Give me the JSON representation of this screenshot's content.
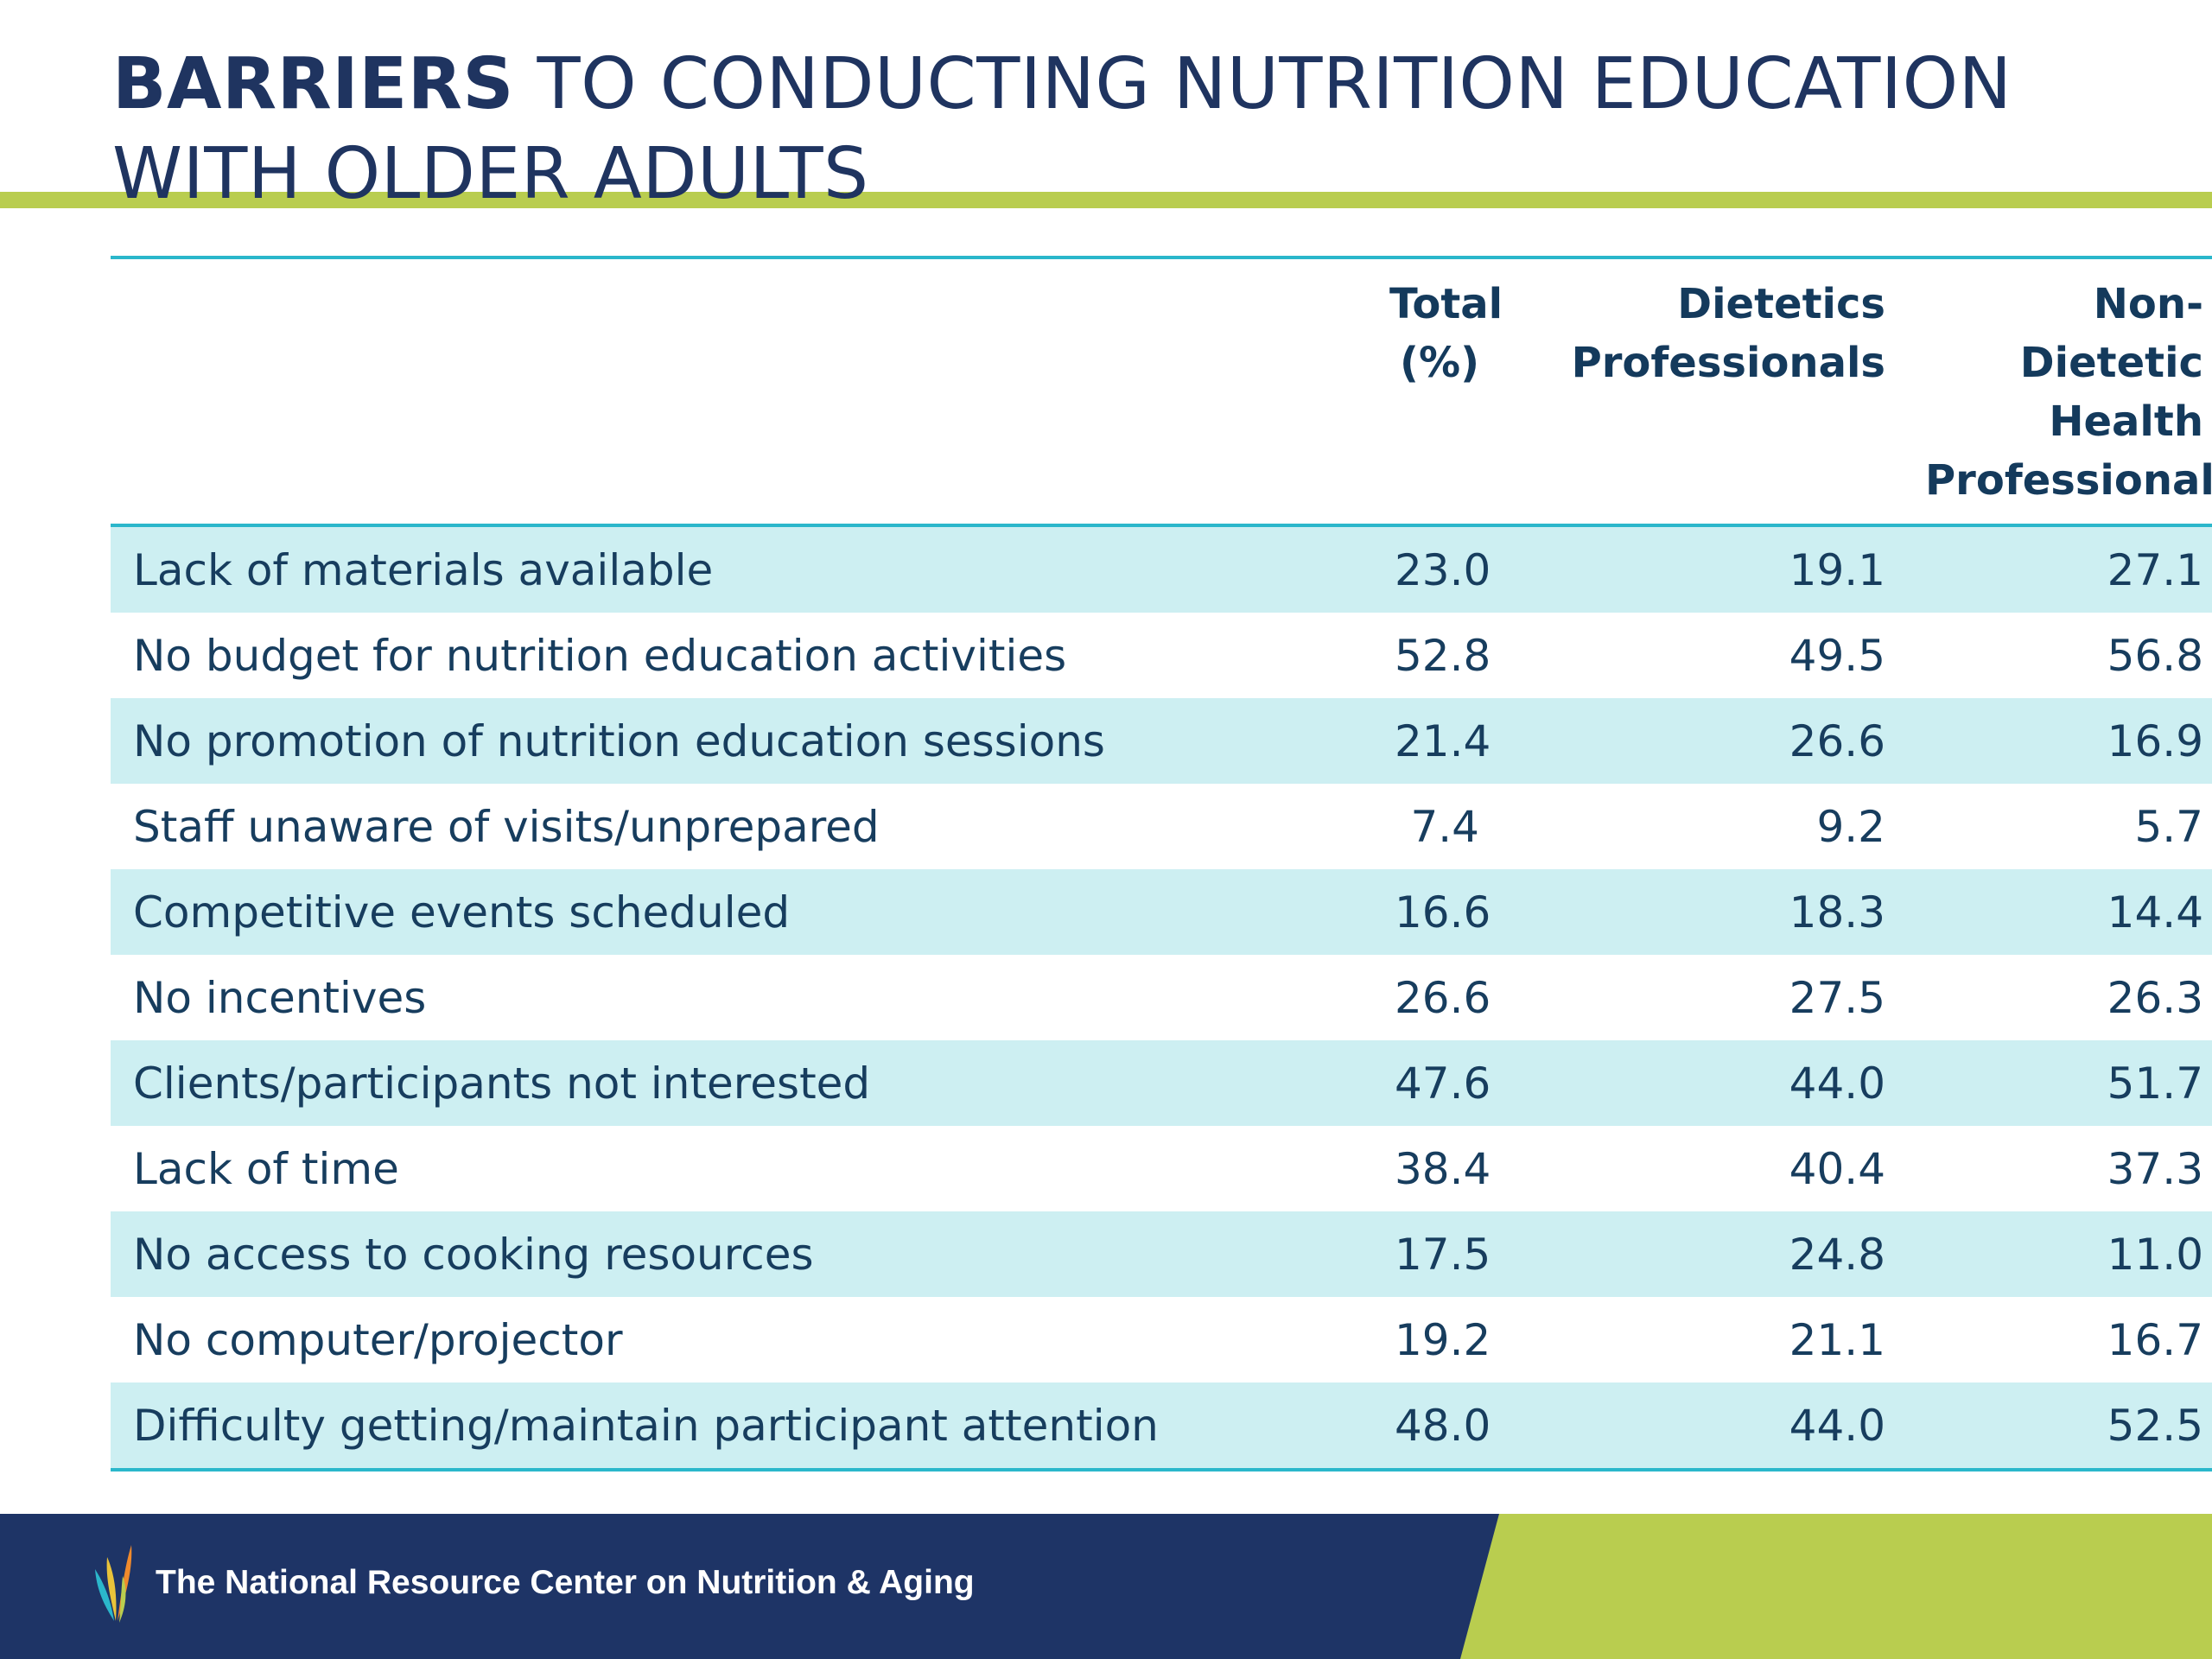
{
  "title": {
    "bold_part": "BARRIERS",
    "regular_part": " TO CONDUCTING NUTRITION EDUCATION WITH OLDER ADULTS"
  },
  "table": {
    "headers": [
      {
        "lines": [
          ""
        ]
      },
      {
        "lines": [
          "Total",
          "(%)"
        ]
      },
      {
        "lines": [
          "Dietetics",
          "Professionals"
        ]
      },
      {
        "lines": [
          "Non-Dietetic",
          "Health",
          "Professionals"
        ]
      }
    ],
    "rows": [
      {
        "label": "Lack of materials available",
        "total": "23.0",
        "dietetics": "19.1",
        "non_dietetic": "27.1"
      },
      {
        "label": "No budget for nutrition education activities",
        "total": "52.8",
        "dietetics": "49.5",
        "non_dietetic": "56.8"
      },
      {
        "label": "No promotion of nutrition education sessions",
        "total": "21.4",
        "dietetics": "26.6",
        "non_dietetic": "16.9"
      },
      {
        "label": "Staff unaware of visits/unprepared",
        "total": "7.4",
        "dietetics": "9.2",
        "non_dietetic": "5.7"
      },
      {
        "label": "Competitive events scheduled",
        "total": "16.6",
        "dietetics": "18.3",
        "non_dietetic": "14.4"
      },
      {
        "label": "No incentives",
        "total": "26.6",
        "dietetics": "27.5",
        "non_dietetic": "26.3"
      },
      {
        "label": "Clients/participants not interested",
        "total": "47.6",
        "dietetics": "44.0",
        "non_dietetic": "51.7"
      },
      {
        "label": "Lack of time",
        "total": "38.4",
        "dietetics": "40.4",
        "non_dietetic": "37.3"
      },
      {
        "label": "No access to cooking resources",
        "total": "17.5",
        "dietetics": "24.8",
        "non_dietetic": "11.0"
      },
      {
        "label": "No computer/projector",
        "total": "19.2",
        "dietetics": "21.1",
        "non_dietetic": "16.7"
      },
      {
        "label": "Difficulty getting/maintain participant attention",
        "total": "48.0",
        "dietetics": "44.0",
        "non_dietetic": "52.5"
      }
    ]
  },
  "footer": {
    "org_name": "The National Resource Center on Nutrition & Aging",
    "logo_icon": "leaf-logo-icon"
  },
  "colors": {
    "title_text": "#1f3460",
    "accent_green": "#b9cd4f",
    "table_rule": "#2bb7cb",
    "row_shade": "#cdeff2",
    "footer_navy": "#1e3466"
  }
}
